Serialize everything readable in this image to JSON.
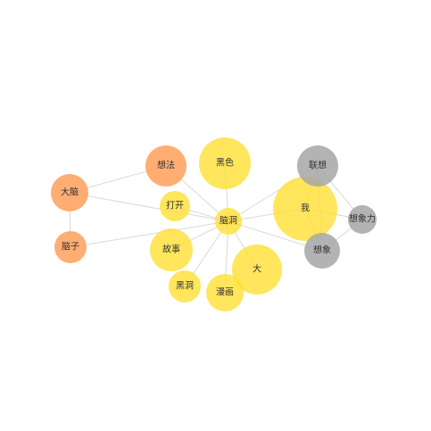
{
  "legend": {
    "colors": {
      "yellow": "#ffe033",
      "orange": "#ffa05a",
      "gray": "#a6a6a6"
    }
  },
  "nodes": [
    {
      "id": "heise",
      "label": "黑色",
      "group": "yellow"
    },
    {
      "id": "xiangfa",
      "label": "想法",
      "group": "orange"
    },
    {
      "id": "danao",
      "label": "大脑",
      "group": "orange"
    },
    {
      "id": "dakai",
      "label": "打开",
      "group": "yellow"
    },
    {
      "id": "naodong",
      "label": "脑洞",
      "group": "yellow"
    },
    {
      "id": "wo",
      "label": "我",
      "group": "yellow"
    },
    {
      "id": "lianxiang",
      "label": "联想",
      "group": "gray"
    },
    {
      "id": "xiangxiangli",
      "label": "想象力",
      "group": "gray"
    },
    {
      "id": "xiangxiang",
      "label": "想象",
      "group": "gray"
    },
    {
      "id": "naozi",
      "label": "脑子",
      "group": "orange"
    },
    {
      "id": "gushi",
      "label": "故事",
      "group": "yellow"
    },
    {
      "id": "da",
      "label": "大",
      "group": "yellow"
    },
    {
      "id": "heidong",
      "label": "黑洞",
      "group": "yellow"
    },
    {
      "id": "manhua",
      "label": "漫画",
      "group": "yellow"
    }
  ],
  "edges": [
    [
      "naodong",
      "heise"
    ],
    [
      "naodong",
      "dakai"
    ],
    [
      "naodong",
      "wo"
    ],
    [
      "naodong",
      "gushi"
    ],
    [
      "naodong",
      "da"
    ],
    [
      "naodong",
      "heidong"
    ],
    [
      "naodong",
      "manhua"
    ],
    [
      "naodong",
      "xiangfa"
    ],
    [
      "naodong",
      "lianxiang"
    ],
    [
      "naodong",
      "xiangxiang"
    ],
    [
      "wo",
      "lianxiang"
    ],
    [
      "wo",
      "xiangxiang"
    ],
    [
      "wo",
      "xiangxiangli"
    ],
    [
      "lianxiang",
      "xiangxiang"
    ],
    [
      "lianxiang",
      "xiangxiangli"
    ],
    [
      "xiangxiang",
      "xiangxiangli"
    ],
    [
      "danao",
      "xiangfa"
    ],
    [
      "danao",
      "naozi"
    ],
    [
      "danao",
      "naodong"
    ],
    [
      "naozi",
      "naodong"
    ]
  ]
}
